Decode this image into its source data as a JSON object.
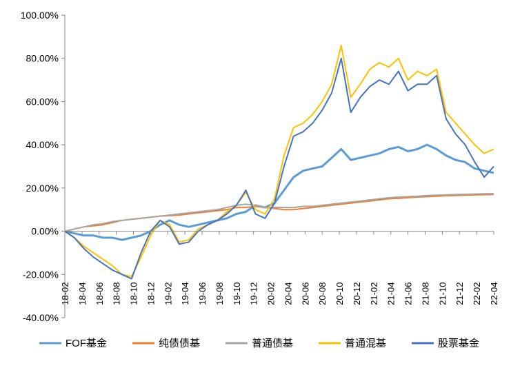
{
  "chart_data": {
    "type": "line",
    "title": "",
    "xlabel": "",
    "ylabel": "",
    "ylim": [
      -0.4,
      1.0
    ],
    "y_ticks": [
      -0.4,
      -0.2,
      0.0,
      0.2,
      0.4,
      0.6,
      0.8,
      1.0
    ],
    "y_tick_labels": [
      "-40.00%",
      "-20.00%",
      "0.00%",
      "20.00%",
      "40.00%",
      "60.00%",
      "80.00%",
      "100.00%"
    ],
    "x_tick_labels": [
      "18-02",
      "18-04",
      "18-06",
      "18-08",
      "18-10",
      "18-12",
      "19-02",
      "19-04",
      "19-06",
      "19-08",
      "19-10",
      "19-12",
      "20-02",
      "20-04",
      "20-06",
      "20-08",
      "20-10",
      "20-12",
      "21-02",
      "21-04",
      "21-06",
      "21-08",
      "21-10",
      "21-12",
      "22-02",
      "22-04"
    ],
    "grid": false,
    "legend_position": "bottom",
    "series": [
      {
        "name": "FOF基金",
        "color": "#5b9bd5",
        "values": [
          0.0,
          -0.01,
          -0.02,
          -0.02,
          -0.03,
          -0.03,
          -0.04,
          -0.03,
          -0.02,
          0.0,
          0.03,
          0.05,
          0.03,
          0.02,
          0.03,
          0.04,
          0.05,
          0.06,
          0.08,
          0.09,
          0.12,
          0.11,
          0.13,
          0.19,
          0.25,
          0.28,
          0.29,
          0.3,
          0.34,
          0.38,
          0.33,
          0.34,
          0.35,
          0.36,
          0.38,
          0.39,
          0.37,
          0.38,
          0.4,
          0.38,
          0.35,
          0.33,
          0.32,
          0.29,
          0.28,
          0.27
        ]
      },
      {
        "name": "纯债债基",
        "color": "#ed7d31",
        "values": [
          0.0,
          0.01,
          0.02,
          0.025,
          0.03,
          0.04,
          0.05,
          0.055,
          0.06,
          0.065,
          0.07,
          0.072,
          0.075,
          0.08,
          0.085,
          0.09,
          0.095,
          0.1,
          0.11,
          0.11,
          0.115,
          0.11,
          0.105,
          0.1,
          0.1,
          0.105,
          0.11,
          0.115,
          0.12,
          0.125,
          0.13,
          0.135,
          0.14,
          0.145,
          0.15,
          0.152,
          0.155,
          0.158,
          0.16,
          0.162,
          0.164,
          0.165,
          0.167,
          0.168,
          0.169,
          0.17
        ]
      },
      {
        "name": "普通债基",
        "color": "#a5a5a5",
        "values": [
          0.0,
          0.01,
          0.02,
          0.03,
          0.035,
          0.045,
          0.05,
          0.055,
          0.06,
          0.065,
          0.07,
          0.075,
          0.08,
          0.085,
          0.09,
          0.095,
          0.1,
          0.11,
          0.12,
          0.125,
          0.12,
          0.11,
          0.11,
          0.11,
          0.11,
          0.115,
          0.115,
          0.12,
          0.125,
          0.13,
          0.135,
          0.14,
          0.145,
          0.15,
          0.155,
          0.158,
          0.16,
          0.162,
          0.165,
          0.167,
          0.168,
          0.17,
          0.171,
          0.172,
          0.173,
          0.174
        ]
      },
      {
        "name": "普通混基",
        "color": "#ffc000",
        "values": [
          0.0,
          -0.03,
          -0.07,
          -0.1,
          -0.13,
          -0.16,
          -0.2,
          -0.21,
          -0.12,
          -0.02,
          0.05,
          0.03,
          -0.05,
          -0.04,
          0.01,
          0.03,
          0.05,
          0.09,
          0.12,
          0.18,
          0.1,
          0.08,
          0.15,
          0.35,
          0.48,
          0.5,
          0.54,
          0.6,
          0.68,
          0.86,
          0.62,
          0.68,
          0.75,
          0.78,
          0.76,
          0.8,
          0.7,
          0.74,
          0.72,
          0.75,
          0.55,
          0.5,
          0.45,
          0.4,
          0.36,
          0.38
        ]
      },
      {
        "name": "股票基金",
        "color": "#4472c4",
        "values": [
          0.0,
          -0.03,
          -0.08,
          -0.12,
          -0.15,
          -0.18,
          -0.2,
          -0.22,
          -0.1,
          0.0,
          0.05,
          0.02,
          -0.06,
          -0.05,
          0.0,
          0.03,
          0.05,
          0.08,
          0.12,
          0.19,
          0.08,
          0.06,
          0.13,
          0.3,
          0.44,
          0.46,
          0.5,
          0.56,
          0.64,
          0.8,
          0.55,
          0.62,
          0.67,
          0.7,
          0.68,
          0.74,
          0.65,
          0.68,
          0.68,
          0.72,
          0.52,
          0.45,
          0.4,
          0.32,
          0.25,
          0.3
        ]
      }
    ]
  }
}
